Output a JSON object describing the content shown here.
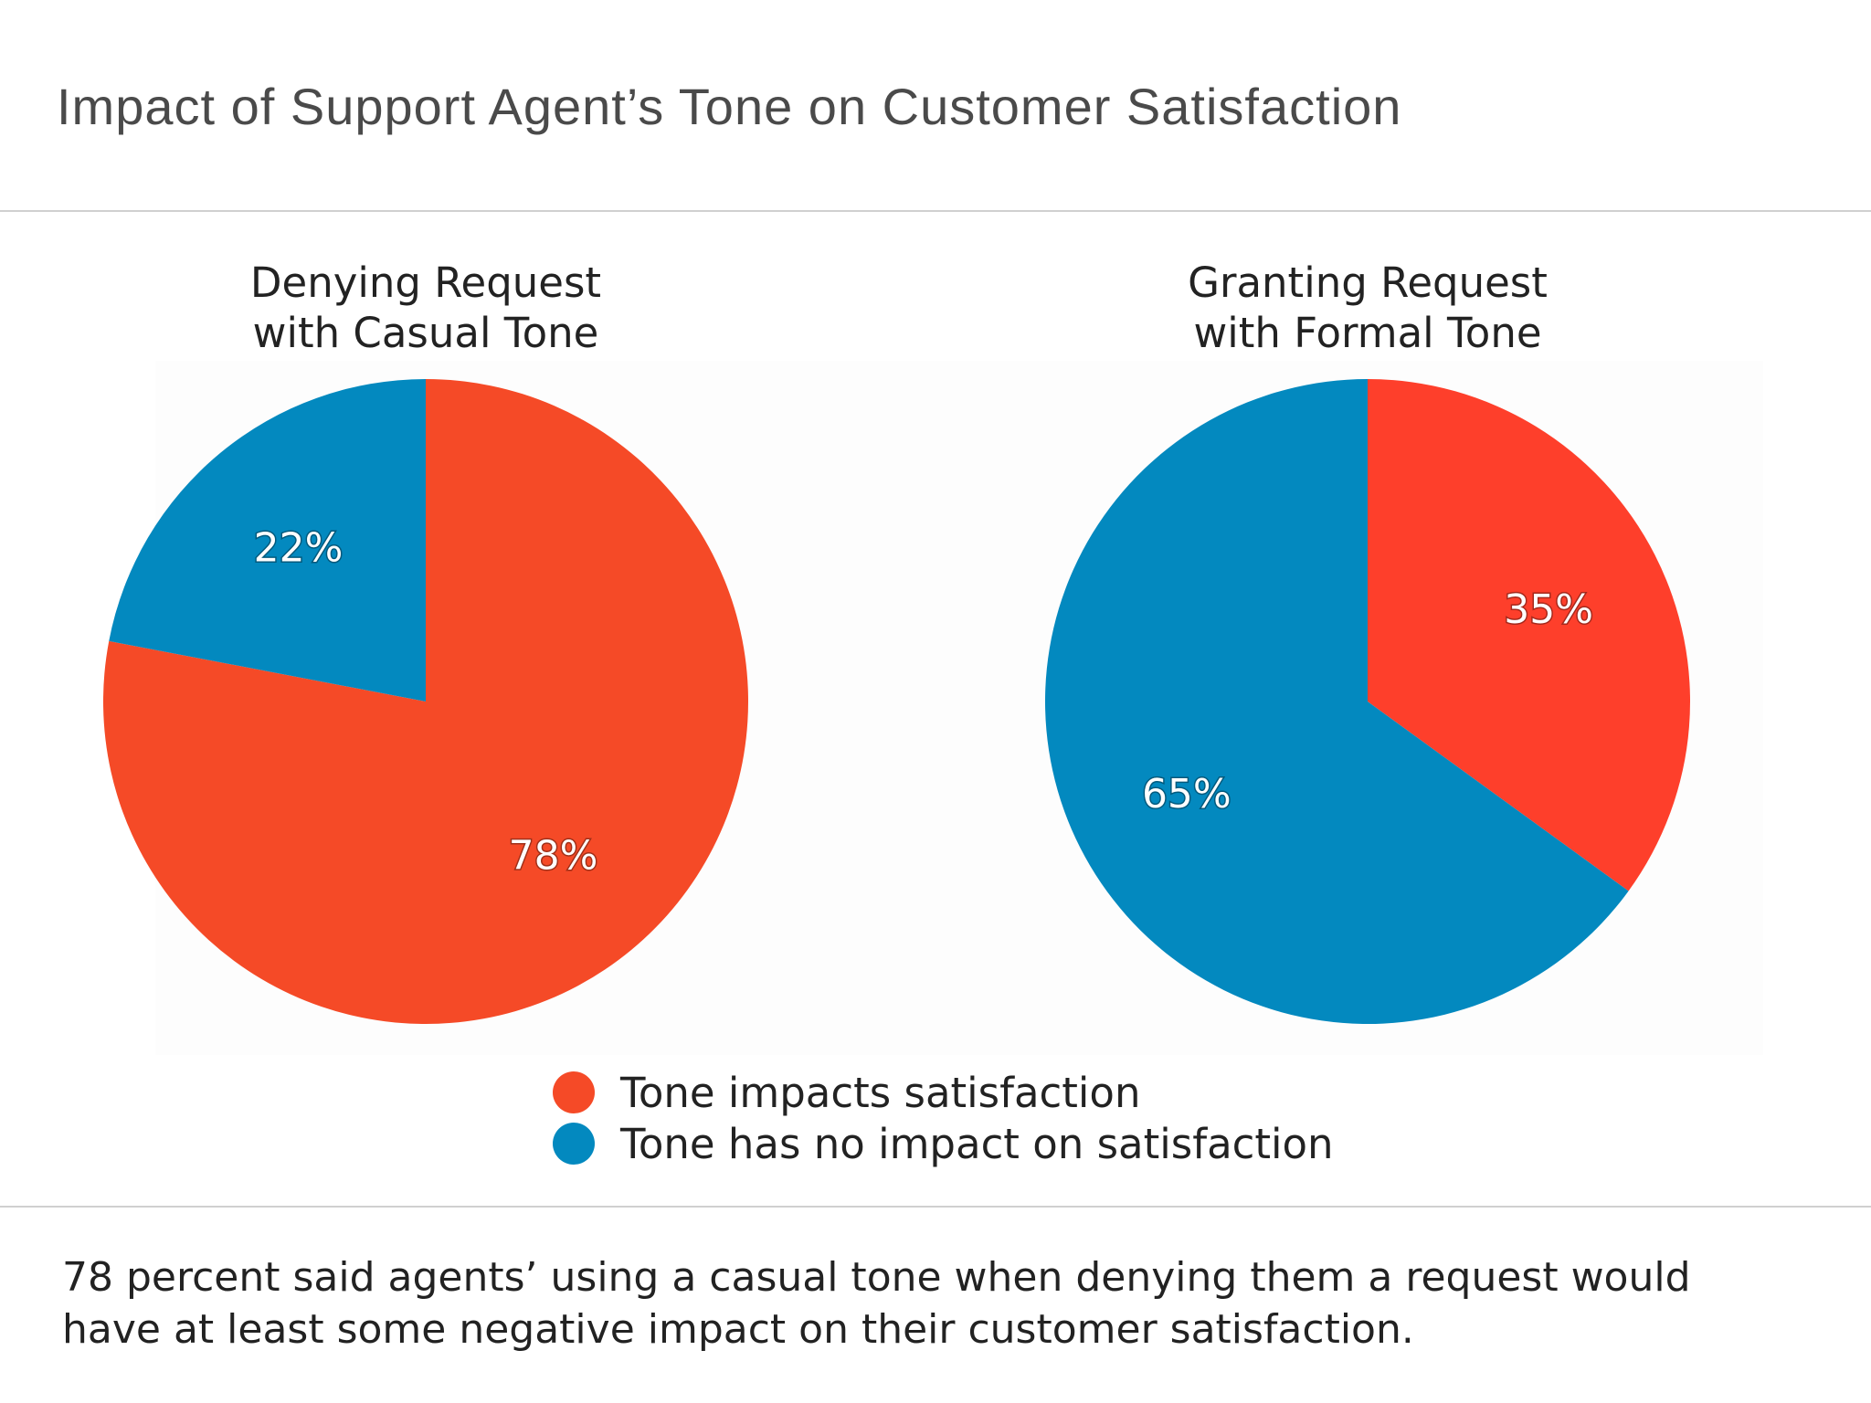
{
  "title": "Impact of Support Agent’s Tone on Customer Satisfaction",
  "colors": {
    "impact": "#f54a27",
    "no_impact": "#0389bf"
  },
  "chart_data": [
    {
      "type": "pie",
      "title_lines": [
        "Denying Request",
        "with Casual Tone"
      ],
      "slices": [
        {
          "name": "Tone impacts satisfaction",
          "value": 78,
          "label": "78%",
          "color": "#f54a27"
        },
        {
          "name": "Tone has no impact on satisfaction",
          "value": 22,
          "label": "22%",
          "color": "#0389bf"
        }
      ]
    },
    {
      "type": "pie",
      "title_lines": [
        "Granting Request",
        "with Formal Tone"
      ],
      "slices": [
        {
          "name": "Tone impacts satisfaction",
          "value": 35,
          "label": "35%",
          "color": "#fe3f2b"
        },
        {
          "name": "Tone has no impact on satisfaction",
          "value": 65,
          "label": "65%",
          "color": "#0389bf"
        }
      ]
    }
  ],
  "legend": {
    "items": [
      {
        "label": "Tone impacts satisfaction",
        "color": "#f54a27"
      },
      {
        "label": "Tone has no impact on satisfaction",
        "color": "#0389bf"
      }
    ],
    "placement": "bottom-center"
  },
  "caption": {
    "line1": "78 percent said agents’ using a casual tone when denying them a request would",
    "line2": "have at least some negative impact on their customer satisfaction."
  }
}
